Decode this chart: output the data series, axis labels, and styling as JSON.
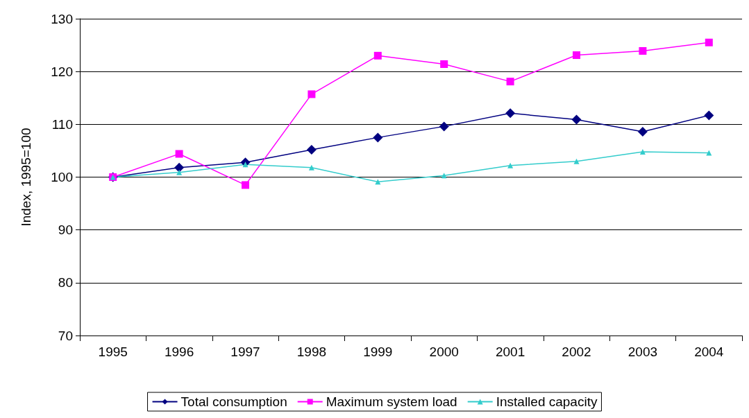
{
  "chart_data": {
    "type": "line",
    "ylabel": "Index, 1995=100",
    "categories": [
      "1995",
      "1996",
      "1997",
      "1998",
      "1999",
      "2000",
      "2001",
      "2002",
      "2003",
      "2004"
    ],
    "series": [
      {
        "name": "Total consumption",
        "color": "#000080",
        "marker": "diamond",
        "values": [
          100,
          101.8,
          102.8,
          105.2,
          107.5,
          109.6,
          112.1,
          110.9,
          108.6,
          111.7
        ]
      },
      {
        "name": "Maximum system load",
        "color": "#ff00ff",
        "marker": "square",
        "values": [
          100,
          104.4,
          98.5,
          115.7,
          123.0,
          121.4,
          118.1,
          123.1,
          123.9,
          125.5
        ]
      },
      {
        "name": "Installed capacity",
        "color": "#33cccc",
        "marker": "triangle",
        "values": [
          100,
          100.9,
          102.4,
          101.8,
          99.1,
          100.3,
          102.2,
          103.0,
          104.8,
          104.6
        ]
      }
    ],
    "ylim": [
      70,
      130
    ],
    "yticks": [
      70,
      80,
      90,
      100,
      110,
      120,
      130
    ],
    "grid": "y",
    "legend": "bottom",
    "line_style": "solid"
  }
}
